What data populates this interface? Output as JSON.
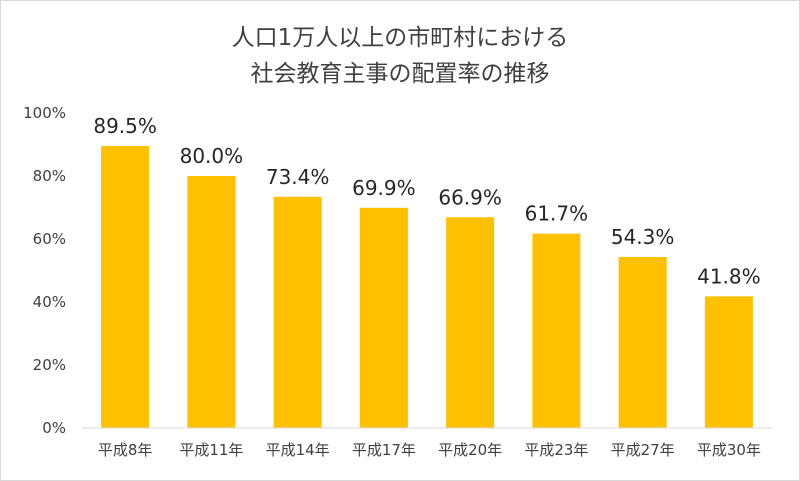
{
  "chart_data": {
    "type": "bar",
    "title": [
      "人口1万人以上の市町村における",
      "社会教育主事の配置率の推移"
    ],
    "categories": [
      "平成8年",
      "平成11年",
      "平成14年",
      "平成17年",
      "平成20年",
      "平成23年",
      "平成27年",
      "平成30年"
    ],
    "values": [
      89.5,
      80.0,
      73.4,
      69.9,
      66.9,
      61.7,
      54.3,
      41.8
    ],
    "data_labels": [
      "89.5%",
      "80.0%",
      "73.4%",
      "69.9%",
      "66.9%",
      "61.7%",
      "54.3%",
      "41.8%"
    ],
    "ylim": [
      0,
      100
    ],
    "yticks": [
      0,
      20,
      40,
      60,
      80,
      100
    ],
    "ytick_labels": [
      "0%",
      "20%",
      "40%",
      "60%",
      "80%",
      "100%"
    ],
    "xlabel": "",
    "ylabel": "",
    "grid": false,
    "legend": "none",
    "bar_color": "#FFC000"
  }
}
